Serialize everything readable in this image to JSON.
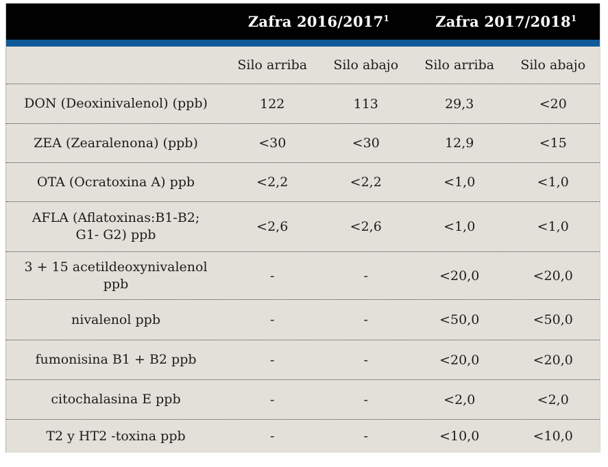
{
  "table": {
    "colors": {
      "header_bg": "#010101",
      "accent_stripe": "#0e5a99",
      "body_bg": "#e2e0d9",
      "text": "#1b1b1b",
      "header_text": "#ffffff"
    },
    "season_headers": [
      {
        "label": "Zafra 2016/2017",
        "superscript": "1"
      },
      {
        "label": "Zafra 2017/2018",
        "superscript": "1"
      }
    ],
    "column_headers": [
      "Silo arriba",
      "Silo abajo",
      "Silo arriba",
      "Silo abajo"
    ],
    "rows": [
      {
        "label": "DON (Deoxinivalenol) (ppb)",
        "values": [
          "122",
          "113",
          "29,3",
          "<20"
        ]
      },
      {
        "label": "ZEA (Zearalenona) (ppb)",
        "values": [
          "<30",
          "<30",
          "12,9",
          "<15"
        ]
      },
      {
        "label": "OTA (Ocratoxina A) ppb",
        "values": [
          "<2,2",
          "<2,2",
          "<1,0",
          "<1,0"
        ]
      },
      {
        "label": "AFLA (Aflatoxinas:B1-B2;\nG1- G2) ppb",
        "values": [
          "<2,6",
          "<2,6",
          "<1,0",
          "<1,0"
        ]
      },
      {
        "label": "3 + 15 acetildeoxynivalenol\nppb",
        "values": [
          "-",
          "-",
          "<20,0",
          "<20,0"
        ]
      },
      {
        "label": "nivalenol ppb",
        "values": [
          "-",
          "-",
          "<50,0",
          "<50,0"
        ]
      },
      {
        "label": "fumonisina B1 + B2 ppb",
        "values": [
          "-",
          "-",
          "<20,0",
          "<20,0"
        ]
      },
      {
        "label": "citochalasina E ppb",
        "values": [
          "-",
          "-",
          "<2,0",
          "<2,0"
        ]
      },
      {
        "label": "T2 y HT2 -toxina ppb",
        "values": [
          "-",
          "-",
          "<10,0",
          "<10,0"
        ]
      }
    ]
  }
}
